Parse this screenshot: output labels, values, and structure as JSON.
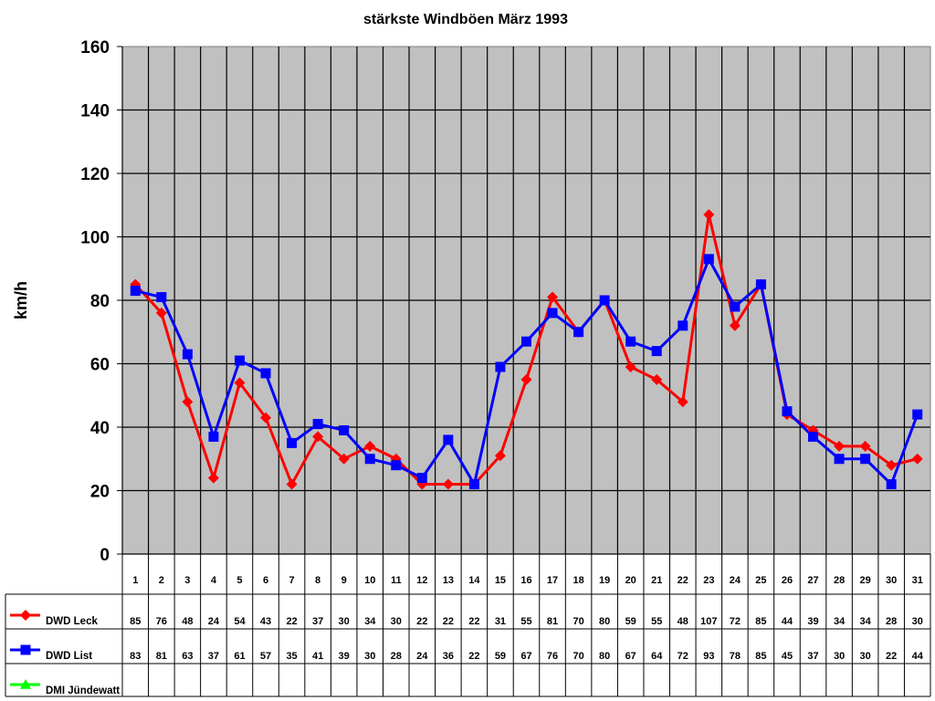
{
  "chart_data": {
    "type": "line",
    "title": "stärkste Windböen März 1993",
    "xlabel": "",
    "ylabel": "km/h",
    "ylim": [
      0,
      160
    ],
    "yticks": [
      0,
      20,
      40,
      60,
      80,
      100,
      120,
      140,
      160
    ],
    "grid": true,
    "legend_position": "data-table-left",
    "categories": [
      "1",
      "2",
      "3",
      "4",
      "5",
      "6",
      "7",
      "8",
      "9",
      "10",
      "11",
      "12",
      "13",
      "14",
      "15",
      "16",
      "17",
      "18",
      "19",
      "20",
      "21",
      "22",
      "23",
      "24",
      "25",
      "26",
      "27",
      "28",
      "29",
      "30",
      "31"
    ],
    "series": [
      {
        "name": "DWD Leck",
        "color": "#ff0000",
        "marker": "diamond",
        "values": [
          85,
          76,
          48,
          24,
          54,
          43,
          22,
          37,
          30,
          34,
          30,
          22,
          22,
          22,
          31,
          55,
          81,
          70,
          80,
          59,
          55,
          48,
          107,
          72,
          85,
          44,
          39,
          34,
          34,
          28,
          30
        ]
      },
      {
        "name": "DWD List",
        "color": "#0000ff",
        "marker": "square",
        "values": [
          83,
          81,
          63,
          37,
          61,
          57,
          35,
          41,
          39,
          30,
          28,
          24,
          36,
          22,
          59,
          67,
          76,
          70,
          80,
          67,
          64,
          72,
          93,
          78,
          85,
          45,
          37,
          30,
          30,
          22,
          44
        ]
      },
      {
        "name": "DMI Jündewatt",
        "color": "#00ff00",
        "marker": "triangle",
        "values": [
          null,
          null,
          null,
          null,
          null,
          null,
          null,
          null,
          null,
          null,
          null,
          null,
          null,
          null,
          null,
          null,
          null,
          null,
          null,
          null,
          null,
          null,
          null,
          null,
          null,
          null,
          null,
          null,
          null,
          null,
          null
        ]
      }
    ],
    "colors": {
      "plot_background": "#c0c0c0",
      "gridline": "#000000",
      "page_background": "#ffffff"
    }
  }
}
